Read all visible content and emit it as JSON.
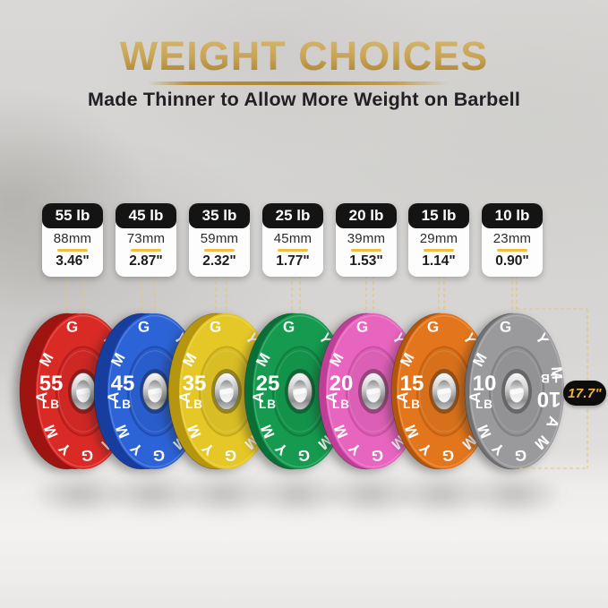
{
  "header": {
    "title": "WEIGHT CHOICES",
    "subtitle": "Made Thinner to Allow More Weight on Barbell"
  },
  "brand_text": "AMGYM",
  "measurement": {
    "diameter_label": "17.7\""
  },
  "colors": {
    "gold_accent": "#c7a254",
    "dash_line": "#e3c572",
    "card_header_bg": "#141414",
    "badge_bg": "#0d0d0d",
    "badge_text": "#f3b23a"
  },
  "plates": [
    {
      "label": "55 lb",
      "weight": "55",
      "unit": "LB",
      "thickness_mm": "88mm",
      "thickness_in": "3.46\"",
      "face_color": "#da2a26",
      "side_color": "#9e1411"
    },
    {
      "label": "45 lb",
      "weight": "45",
      "unit": "LB",
      "thickness_mm": "73mm",
      "thickness_in": "2.87\"",
      "face_color": "#2c63d6",
      "side_color": "#173e9e"
    },
    {
      "label": "35 lb",
      "weight": "35",
      "unit": "LB",
      "thickness_mm": "59mm",
      "thickness_in": "2.32\"",
      "face_color": "#e5c827",
      "side_color": "#b6950f"
    },
    {
      "label": "25 lb",
      "weight": "25",
      "unit": "LB",
      "thickness_mm": "45mm",
      "thickness_in": "1.77\"",
      "face_color": "#159a4f",
      "side_color": "#0a6f36"
    },
    {
      "label": "20 lb",
      "weight": "20",
      "unit": "LB",
      "thickness_mm": "39mm",
      "thickness_in": "1.53\"",
      "face_color": "#e765be",
      "side_color": "#bf3f98"
    },
    {
      "label": "15 lb",
      "weight": "15",
      "unit": "LB",
      "thickness_mm": "29mm",
      "thickness_in": "1.14\"",
      "face_color": "#e3761c",
      "side_color": "#b2560c"
    },
    {
      "label": "10 lb",
      "weight": "10",
      "unit": "LB",
      "thickness_mm": "23mm",
      "thickness_in": "0.90\"",
      "face_color": "#9a999c",
      "side_color": "#707072"
    }
  ]
}
